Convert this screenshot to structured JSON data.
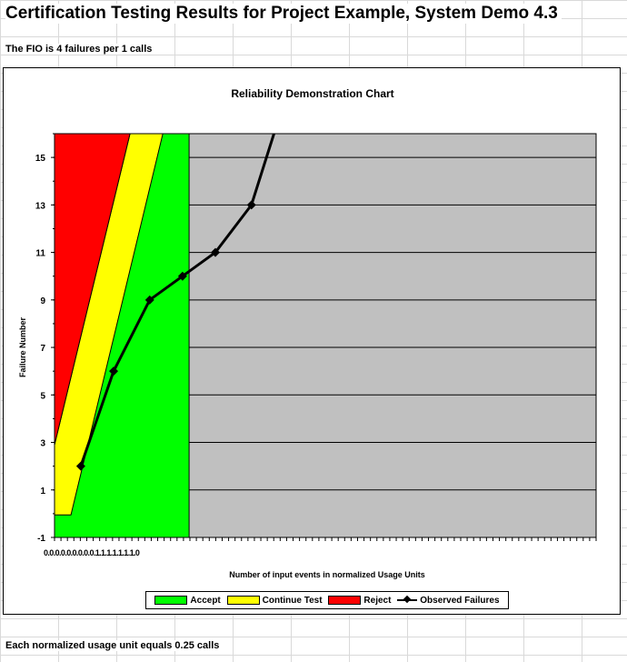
{
  "page": {
    "title": "Certification Testing Results for Project Example, System Demo 4.3",
    "fio_text": "The FIO is 4 failures per 1 calls",
    "footer_text": "Each normalized usage unit equals 0.25 calls"
  },
  "chart_data": {
    "type": "area",
    "title": "Reliability Demonstration Chart",
    "xlabel": "Number of input events in normalized Usage Units",
    "ylabel": "Failure Number",
    "xlim": [
      0,
      16.5
    ],
    "ylim": [
      -1,
      16
    ],
    "y_ticks": [
      -1,
      1,
      3,
      5,
      7,
      9,
      11,
      13,
      15
    ],
    "x_tick_text": "0.0.0.0.0.0.0.0.0.1.1.1.1.1.1.1.0",
    "grid": "horizontal",
    "legend_position": "bottom",
    "colors": {
      "accept": "#00ff00",
      "continue": "#ffff00",
      "reject": "#ff0000",
      "out_of_region": "#c0c0c0",
      "observed": "#000000"
    },
    "series": [
      {
        "name": "Accept",
        "region": [
          [
            0.5,
            -1
          ],
          [
            4.1,
            16
          ],
          [
            4.1,
            -1
          ]
        ]
      },
      {
        "name": "Continue Test",
        "region": [
          [
            0,
            -0.05
          ],
          [
            0.5,
            -0.05
          ],
          [
            3.3,
            16
          ],
          [
            2.3,
            16
          ],
          [
            0,
            2.9
          ]
        ]
      },
      {
        "name": "Reject",
        "region": [
          [
            0,
            2.9
          ],
          [
            2.3,
            16
          ],
          [
            0,
            16
          ]
        ]
      },
      {
        "name": "Observed Failures",
        "x": [
          0.8,
          1.8,
          2.9,
          3.9,
          4.9,
          6.0,
          6.8
        ],
        "y": [
          2,
          6,
          9,
          10,
          11,
          13,
          16.5
        ]
      }
    ]
  }
}
